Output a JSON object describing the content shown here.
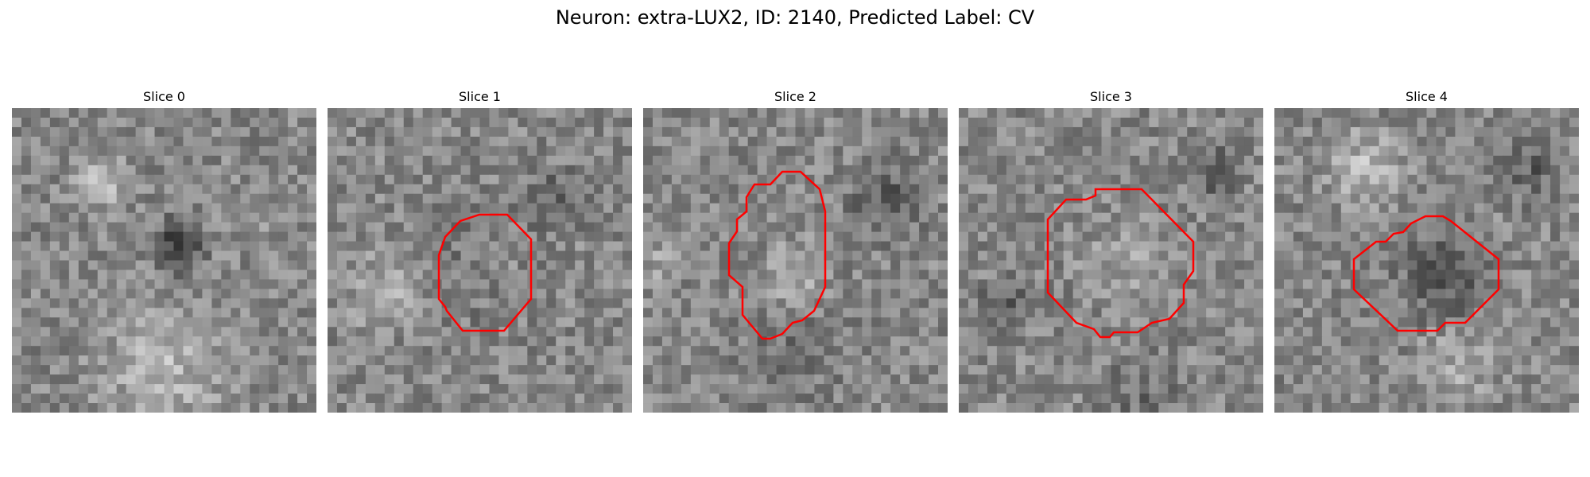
{
  "figure": {
    "title": "Neuron: extra-LUX2, ID: 2140, Predicted Label: CV",
    "contour_color": "#ff0000",
    "panels": [
      {
        "label": "Slice 0",
        "has_contour": false,
        "seed": 11
      },
      {
        "label": "Slice 1",
        "has_contour": true,
        "seed": 23
      },
      {
        "label": "Slice 2",
        "has_contour": true,
        "seed": 37
      },
      {
        "label": "Slice 3",
        "has_contour": true,
        "seed": 41
      },
      {
        "label": "Slice 4",
        "has_contour": true,
        "seed": 53
      }
    ]
  }
}
